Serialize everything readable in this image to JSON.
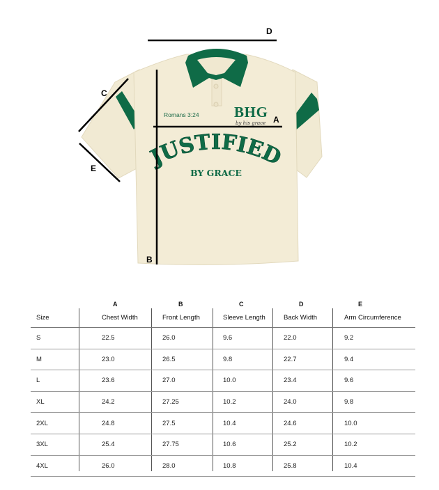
{
  "diagram": {
    "labels": {
      "a": "A",
      "b": "B",
      "c": "C",
      "d": "D",
      "e": "E"
    },
    "print": {
      "verse": "Romans 3:24",
      "logo": "BHG",
      "logo_script": "by his grace",
      "headline": "JUSTIFIED",
      "subline": "BY GRACE"
    },
    "colors": {
      "shirt": "#f3ecd6",
      "trim": "#0f6b47",
      "lines": "#000000"
    }
  },
  "table": {
    "letters": [
      "",
      "A",
      "B",
      "C",
      "D",
      "E"
    ],
    "headers": [
      "Size",
      "Chest Width",
      "Front Length",
      "Sleeve Length",
      "Back Width",
      "Arm Circumference"
    ],
    "rows": [
      [
        "S",
        "22.5",
        "26.0",
        "9.6",
        "22.0",
        "9.2"
      ],
      [
        "M",
        "23.0",
        "26.5",
        "9.8",
        "22.7",
        "9.4"
      ],
      [
        "L",
        "23.6",
        "27.0",
        "10.0",
        "23.4",
        "9.6"
      ],
      [
        "XL",
        "24.2",
        "27.25",
        "10.2",
        "24.0",
        "9.8"
      ],
      [
        "2XL",
        "24.8",
        "27.5",
        "10.4",
        "24.6",
        "10.0"
      ],
      [
        "3XL",
        "25.4",
        "27.75",
        "10.6",
        "25.2",
        "10.2"
      ],
      [
        "4XL",
        "26.0",
        "28.0",
        "10.8",
        "25.8",
        "10.4"
      ]
    ]
  }
}
